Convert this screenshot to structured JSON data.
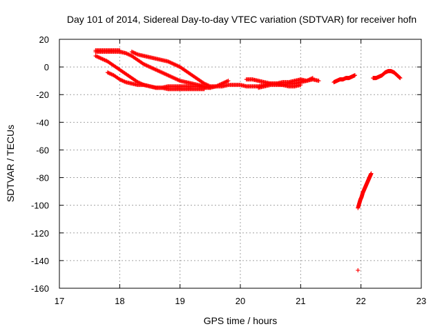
{
  "chart_data": {
    "type": "scatter",
    "title": "Day 101 of 2014, Sidereal Day-to-day VTEC variation (SDTVAR) for receiver hofn",
    "xlabel": "GPS time / hours",
    "ylabel": "SDTVAR / TECUs",
    "xlim": [
      17,
      23
    ],
    "ylim": [
      -160,
      20
    ],
    "xticks": [
      17,
      18,
      19,
      20,
      21,
      22,
      23
    ],
    "yticks": [
      -160,
      -140,
      -120,
      -100,
      -80,
      -60,
      -40,
      -20,
      0,
      20
    ],
    "grid": true,
    "legend": "none",
    "marker": "plus",
    "color": "#ff0000",
    "series": [
      {
        "x": [
          17.6,
          17.7,
          17.8,
          17.9,
          18.0,
          18.1,
          18.2,
          18.3,
          18.4,
          18.5,
          18.6,
          18.7,
          18.8,
          18.9,
          19.0,
          19.1,
          19.2,
          19.3,
          19.4
        ],
        "y": [
          8,
          6,
          4,
          1,
          -2,
          -5,
          -8,
          -11,
          -13,
          -14,
          -15,
          -15,
          -14,
          -14,
          -14,
          -14,
          -14,
          -14,
          -14
        ]
      },
      {
        "x": [
          17.6,
          17.7,
          17.8,
          17.9,
          18.0,
          18.1,
          18.2,
          18.3,
          18.4,
          18.5,
          18.6,
          18.7,
          18.8,
          18.9,
          19.0,
          19.1,
          19.2,
          19.3,
          19.4,
          19.5
        ],
        "y": [
          11,
          11,
          11,
          11,
          11,
          10,
          8,
          5,
          2,
          0,
          -2,
          -4,
          -6,
          -8,
          -10,
          -11,
          -12,
          -13,
          -14,
          -15
        ]
      },
      {
        "x": [
          17.8,
          17.9,
          18.0,
          18.1,
          18.2,
          18.3,
          18.4,
          18.5,
          18.6,
          18.7,
          18.8,
          18.9,
          19.0,
          19.1,
          19.2,
          19.3,
          19.4
        ],
        "y": [
          -4,
          -6,
          -9,
          -11,
          -12,
          -13,
          -13,
          -14,
          -15,
          -15,
          -16,
          -16,
          -16,
          -16,
          -16,
          -16,
          -16
        ]
      },
      {
        "x": [
          17.6,
          17.7,
          17.8,
          17.9,
          18.0
        ],
        "y": [
          12,
          12,
          12,
          12,
          12
        ]
      },
      {
        "x": [
          18.2,
          18.3,
          18.4,
          18.5,
          18.6,
          18.7,
          18.8,
          18.9,
          19.0,
          19.1,
          19.2,
          19.3,
          19.4,
          19.5,
          19.6,
          19.7,
          19.8
        ],
        "y": [
          11,
          9,
          8,
          7,
          6,
          5,
          4,
          2,
          0,
          -3,
          -6,
          -9,
          -12,
          -14,
          -14,
          -12,
          -10
        ]
      },
      {
        "x": [
          19.4,
          19.5,
          19.6,
          19.7,
          19.8,
          19.9,
          20.0,
          20.1,
          20.2,
          20.3,
          20.4,
          20.5,
          20.6,
          20.7,
          20.8,
          20.9,
          21.0
        ],
        "y": [
          -15,
          -15,
          -14,
          -14,
          -13,
          -13,
          -13,
          -14,
          -14,
          -14,
          -13,
          -12,
          -12,
          -13,
          -14,
          -14,
          -13
        ]
      },
      {
        "x": [
          20.1,
          20.2,
          20.3,
          20.4,
          20.5,
          20.6,
          20.7,
          20.8,
          20.9,
          21.0,
          21.1,
          21.2,
          21.3
        ],
        "y": [
          -9,
          -9,
          -10,
          -11,
          -12,
          -12,
          -11,
          -11,
          -10,
          -9,
          -10,
          -9,
          -10
        ]
      },
      {
        "x": [
          20.3,
          20.4,
          20.5,
          20.6,
          20.7,
          20.8,
          20.9,
          21.0,
          21.1,
          21.2
        ],
        "y": [
          -15,
          -14,
          -13,
          -13,
          -13,
          -12,
          -12,
          -11,
          -10,
          -8
        ]
      },
      {
        "x": [
          21.55,
          21.6,
          21.65,
          21.7,
          21.75,
          21.8,
          21.85,
          21.9
        ],
        "y": [
          -11,
          -10,
          -9,
          -9,
          -8,
          -8,
          -7,
          -6
        ]
      },
      {
        "x": [
          22.2,
          22.25,
          22.3,
          22.35,
          22.4,
          22.45,
          22.5,
          22.55,
          22.6,
          22.65
        ],
        "y": [
          -8,
          -8,
          -7,
          -6,
          -4,
          -3,
          -3,
          -4,
          -6,
          -8
        ]
      },
      {
        "x": [
          21.95,
          21.97,
          21.99,
          22.01,
          22.03,
          22.05,
          22.07,
          22.09,
          22.11,
          22.13,
          22.15,
          22.17
        ],
        "y": [
          -102,
          -99,
          -96,
          -94,
          -91,
          -89,
          -87,
          -85,
          -83,
          -81,
          -79,
          -77
        ]
      },
      {
        "x": [
          21.95
        ],
        "y": [
          -147
        ]
      }
    ]
  }
}
